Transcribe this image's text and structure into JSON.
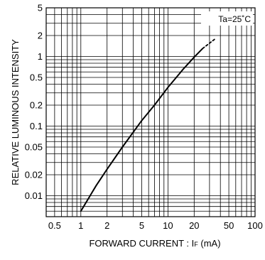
{
  "chart_data": {
    "type": "line",
    "xscale": "log",
    "yscale": "log",
    "xlim": [
      0.4,
      100
    ],
    "ylim": [
      0.005,
      5
    ],
    "grid": true,
    "xlabel_main": "FORWARD  CURRENT : I",
    "xlabel_sub": "F",
    "xlabel_unit": "  (mA)",
    "ylabel": "RELATIVE  LUMINOUS  INTENSITY",
    "annotation": "Ta=25˚C",
    "xticks": [
      "0.5",
      "1",
      "2",
      "5",
      "10",
      "20",
      "50",
      "100"
    ],
    "yticks": [
      "0.01",
      "0.02",
      "0.05",
      "0.1",
      "0.2",
      "0.5",
      "1",
      "2",
      "5"
    ],
    "series": [
      {
        "style": "solid",
        "x": [
          1,
          1.5,
          2,
          3,
          5,
          7,
          10,
          15,
          20,
          25
        ],
        "y": [
          0.006,
          0.014,
          0.024,
          0.05,
          0.12,
          0.2,
          0.36,
          0.66,
          0.98,
          1.3
        ]
      },
      {
        "style": "dashed",
        "x": [
          25,
          30,
          35
        ],
        "y": [
          1.3,
          1.55,
          1.8
        ]
      }
    ]
  }
}
